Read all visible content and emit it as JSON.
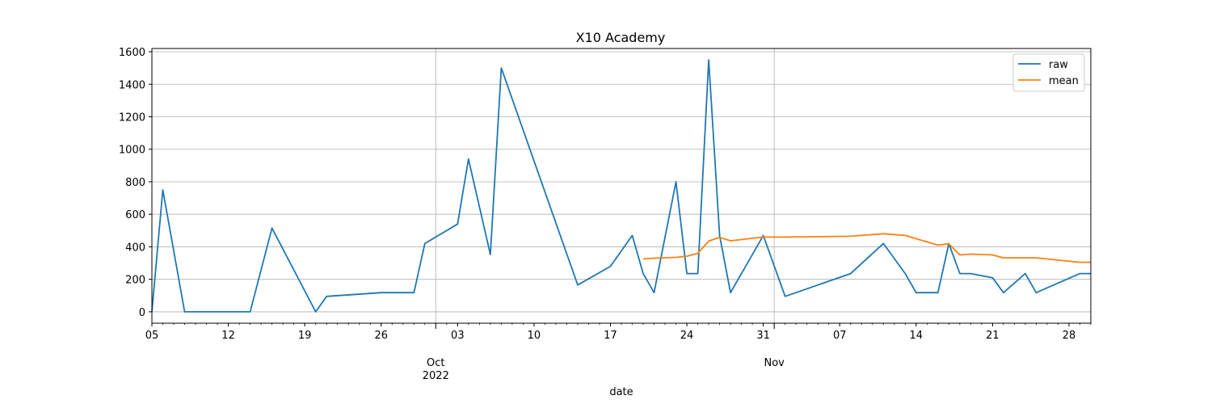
{
  "chart_data": {
    "type": "line",
    "title": "X10 Academy",
    "xlabel": "date",
    "ylabel": "",
    "ylim": [
      -70,
      1620
    ],
    "xlim": [
      "2022-09-05",
      "2022-11-30"
    ],
    "grid": true,
    "legend_position": "top-right",
    "y_ticks": [
      0,
      200,
      400,
      600,
      800,
      1000,
      1200,
      1400,
      1600
    ],
    "x_minor_ticks": [
      {
        "date": "2022-09-05",
        "label": "05"
      },
      {
        "date": "2022-09-12",
        "label": "12"
      },
      {
        "date": "2022-09-19",
        "label": "19"
      },
      {
        "date": "2022-09-26",
        "label": "26"
      },
      {
        "date": "2022-10-03",
        "label": "03"
      },
      {
        "date": "2022-10-10",
        "label": "10"
      },
      {
        "date": "2022-10-17",
        "label": "17"
      },
      {
        "date": "2022-10-24",
        "label": "24"
      },
      {
        "date": "2022-10-31",
        "label": "31"
      },
      {
        "date": "2022-11-07",
        "label": "07"
      },
      {
        "date": "2022-11-14",
        "label": "14"
      },
      {
        "date": "2022-11-21",
        "label": "21"
      },
      {
        "date": "2022-11-28",
        "label": "28"
      }
    ],
    "x_major_ticks": [
      {
        "date": "2022-10-01",
        "label": "Oct",
        "sublabel": "2022"
      },
      {
        "date": "2022-11-01",
        "label": "Nov",
        "sublabel": ""
      }
    ],
    "series": [
      {
        "name": "raw",
        "color": "#1f77b4",
        "points": [
          [
            "2022-09-05",
            0
          ],
          [
            "2022-09-06",
            750
          ],
          [
            "2022-09-08",
            0
          ],
          [
            "2022-09-14",
            0
          ],
          [
            "2022-09-16",
            515
          ],
          [
            "2022-09-20",
            0
          ],
          [
            "2022-09-21",
            95
          ],
          [
            "2022-09-26",
            118
          ],
          [
            "2022-09-29",
            118
          ],
          [
            "2022-09-30",
            420
          ],
          [
            "2022-10-03",
            540
          ],
          [
            "2022-10-04",
            940
          ],
          [
            "2022-10-06",
            352
          ],
          [
            "2022-10-07",
            1500
          ],
          [
            "2022-10-14",
            165
          ],
          [
            "2022-10-17",
            280
          ],
          [
            "2022-10-19",
            470
          ],
          [
            "2022-10-20",
            235
          ],
          [
            "2022-10-21",
            118
          ],
          [
            "2022-10-23",
            800
          ],
          [
            "2022-10-24",
            235
          ],
          [
            "2022-10-25",
            235
          ],
          [
            "2022-10-26",
            1550
          ],
          [
            "2022-10-27",
            470
          ],
          [
            "2022-10-28",
            118
          ],
          [
            "2022-10-31",
            470
          ],
          [
            "2022-11-02",
            95
          ],
          [
            "2022-11-08",
            235
          ],
          [
            "2022-11-11",
            420
          ],
          [
            "2022-11-13",
            235
          ],
          [
            "2022-11-14",
            118
          ],
          [
            "2022-11-16",
            118
          ],
          [
            "2022-11-17",
            420
          ],
          [
            "2022-11-18",
            235
          ],
          [
            "2022-11-19",
            235
          ],
          [
            "2022-11-21",
            210
          ],
          [
            "2022-11-22",
            118
          ],
          [
            "2022-11-24",
            235
          ],
          [
            "2022-11-25",
            118
          ],
          [
            "2022-11-29",
            235
          ],
          [
            "2022-11-30",
            235
          ]
        ]
      },
      {
        "name": "mean",
        "color": "#ff7f0e",
        "points": [
          [
            "2022-10-20",
            325
          ],
          [
            "2022-10-21",
            330
          ],
          [
            "2022-10-23",
            335
          ],
          [
            "2022-10-24",
            342
          ],
          [
            "2022-10-25",
            360
          ],
          [
            "2022-10-26",
            435
          ],
          [
            "2022-10-27",
            458
          ],
          [
            "2022-10-28",
            437
          ],
          [
            "2022-10-31",
            460
          ],
          [
            "2022-11-02",
            460
          ],
          [
            "2022-11-08",
            465
          ],
          [
            "2022-11-11",
            480
          ],
          [
            "2022-11-13",
            470
          ],
          [
            "2022-11-16",
            410
          ],
          [
            "2022-11-17",
            418
          ],
          [
            "2022-11-18",
            350
          ],
          [
            "2022-11-19",
            355
          ],
          [
            "2022-11-21",
            350
          ],
          [
            "2022-11-22",
            332
          ],
          [
            "2022-11-25",
            332
          ],
          [
            "2022-11-29",
            305
          ],
          [
            "2022-11-30",
            305
          ]
        ]
      }
    ]
  }
}
